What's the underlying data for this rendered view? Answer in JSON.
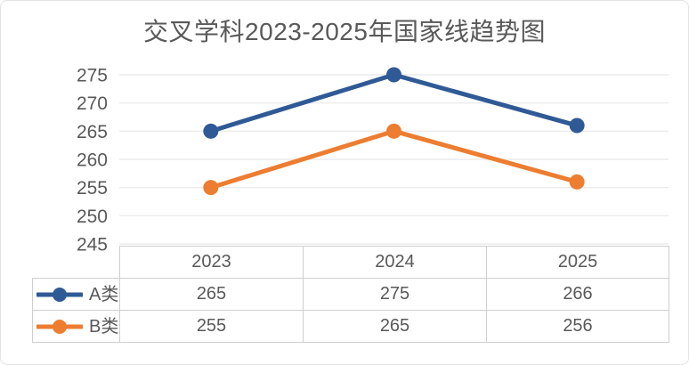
{
  "chart_data": {
    "type": "line",
    "title": "交叉学科2023-2025年国家线趋势图",
    "categories": [
      "2023",
      "2024",
      "2025"
    ],
    "series": [
      {
        "name": "A类",
        "values": [
          265,
          275,
          266
        ],
        "color": "#2f5a96"
      },
      {
        "name": "B类",
        "values": [
          255,
          265,
          256
        ],
        "color": "#ed7d31"
      }
    ],
    "ylim": [
      245,
      275
    ],
    "ytick_step": 5,
    "yticks": [
      275,
      270,
      265,
      260,
      255,
      250,
      245
    ],
    "grid": true,
    "marker": "circle",
    "legend_position": "table-left",
    "data_table": true
  },
  "colors": {
    "text": "#595959",
    "gridline": "#ebebeb",
    "table_border": "#cfcfcf",
    "frame_border": "#e3e3e3",
    "background": "#ffffff"
  }
}
